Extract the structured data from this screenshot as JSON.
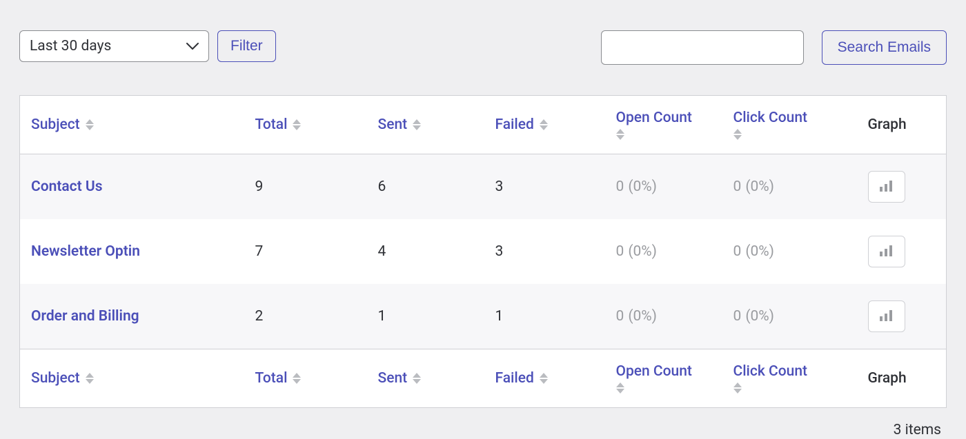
{
  "colors": {
    "accent": "#4b4fb8",
    "text": "#2f3136",
    "muted": "#9a9ca0",
    "page_bg": "#efeff1",
    "row_alt_bg": "#f7f7f9",
    "border": "#cfd0d4",
    "input_border": "#8a8c90"
  },
  "toolbar": {
    "range_selected": "Last 30 days",
    "filter_label": "Filter",
    "search_value": "",
    "search_placeholder": "",
    "search_button_label": "Search Emails"
  },
  "table": {
    "columns": {
      "subject": "Subject",
      "total": "Total",
      "sent": "Sent",
      "failed": "Failed",
      "open_count": "Open Count",
      "click_count": "Click Count",
      "graph": "Graph"
    },
    "rows": [
      {
        "subject": "Contact Us",
        "total": "9",
        "sent": "6",
        "failed": "3",
        "open_value": "0",
        "open_pct": "(0%)",
        "click_value": "0",
        "click_pct": "(0%)"
      },
      {
        "subject": "Newsletter Optin",
        "total": "7",
        "sent": "4",
        "failed": "3",
        "open_value": "0",
        "open_pct": "(0%)",
        "click_value": "0",
        "click_pct": "(0%)"
      },
      {
        "subject": "Order and Billing",
        "total": "2",
        "sent": "1",
        "failed": "1",
        "open_value": "0",
        "open_pct": "(0%)",
        "click_value": "0",
        "click_pct": "(0%)"
      }
    ]
  },
  "footer": {
    "items_label": "3 items"
  }
}
